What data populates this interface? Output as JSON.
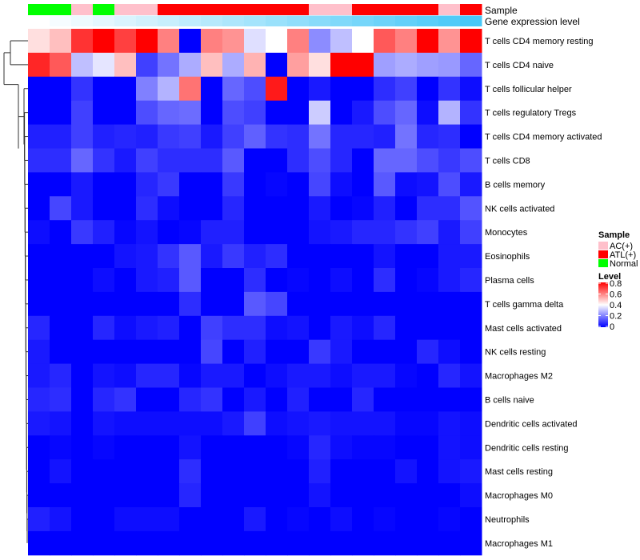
{
  "chart_data": {
    "type": "heatmap",
    "title": "",
    "annotations": {
      "sample_label": "Sample",
      "gene_label": "Gene expression level",
      "sample_groups": [
        "Normal",
        "Normal",
        "AC(+)",
        "Normal",
        "AC(+)",
        "AC(+)",
        "ATL(+)",
        "ATL(+)",
        "ATL(+)",
        "ATL(+)",
        "ATL(+)",
        "ATL(+)",
        "ATL(+)",
        "AC(+)",
        "AC(+)",
        "ATL(+)",
        "ATL(+)",
        "ATL(+)",
        "ATL(+)",
        "AC(+)",
        "ATL(+)"
      ],
      "gene_colors": {
        "low": "#ffffff",
        "high": "#48c8f8"
      }
    },
    "rows": [
      "T cells CD4 memory resting",
      "T cells CD4 naive",
      "T cells follicular helper",
      "T cells regulatory  Tregs",
      "T cells CD4 memory activated",
      "T cells CD8",
      "B cells memory",
      "NK cells activated",
      "Monocytes",
      "Eosinophils",
      "Plasma cells",
      "T cells gamma delta",
      "Mast cells activated",
      "NK cells resting",
      "Macrophages M2",
      "B cells naive",
      "Dendritic cells activated",
      "Dendritic cells resting",
      "Mast cells resting",
      "Macrophages M0",
      "Neutrophils",
      "Macrophages M1"
    ],
    "values": [
      [
        0.45,
        0.5,
        0.72,
        0.8,
        0.7,
        0.8,
        0.6,
        0,
        0.6,
        0.57,
        0.35,
        0.4,
        0.6,
        0.22,
        0.3,
        0.4,
        0.66,
        0.6,
        0.8,
        0.57,
        0.8
      ],
      [
        0.74,
        0.66,
        0.3,
        0.36,
        0.5,
        0.1,
        0.18,
        0.27,
        0.5,
        0.27,
        0.52,
        0,
        0.55,
        0.45,
        0.8,
        0.8,
        0.25,
        0.27,
        0.25,
        0.24,
        0.16
      ],
      [
        0,
        0,
        0.08,
        0,
        0,
        0.2,
        0.28,
        0.62,
        0,
        0.16,
        0.12,
        0.76,
        0,
        0.04,
        0,
        0,
        0.07,
        0.1,
        0,
        0.08,
        0.02
      ],
      [
        0,
        0,
        0.1,
        0,
        0,
        0.12,
        0.16,
        0.17,
        0,
        0.12,
        0.1,
        0,
        0,
        0.32,
        0,
        0.04,
        0.12,
        0.16,
        0.02,
        0.28,
        0.08
      ],
      [
        0.05,
        0.05,
        0.1,
        0.05,
        0.06,
        0.05,
        0.09,
        0.1,
        0.04,
        0.1,
        0.15,
        0.08,
        0.07,
        0.18,
        0.06,
        0.06,
        0.05,
        0.18,
        0.06,
        0.07,
        0
      ],
      [
        0.07,
        0.07,
        0.16,
        0.08,
        0.04,
        0.1,
        0.07,
        0.07,
        0.07,
        0.14,
        0,
        0,
        0.07,
        0.12,
        0.06,
        0,
        0.16,
        0.16,
        0.12,
        0.09,
        0.12
      ],
      [
        0,
        0,
        0.04,
        0,
        0,
        0.06,
        0.09,
        0,
        0,
        0.09,
        0,
        0.01,
        0,
        0.11,
        0.02,
        0,
        0.14,
        0.02,
        0.03,
        0.12,
        0.04
      ],
      [
        0,
        0.11,
        0.04,
        0,
        0,
        0.07,
        0.02,
        0,
        0,
        0.06,
        0,
        0,
        0,
        0.04,
        0,
        0.01,
        0.05,
        0,
        0.07,
        0.07,
        0.13
      ],
      [
        0.02,
        0,
        0.09,
        0.05,
        0.01,
        0.03,
        0,
        0.01,
        0.05,
        0.05,
        0,
        0,
        0,
        0.03,
        0.04,
        0.06,
        0.06,
        0.08,
        0.1,
        0.04,
        0.1
      ],
      [
        0,
        0,
        0,
        0,
        0.03,
        0.04,
        0.08,
        0.14,
        0.04,
        0.09,
        0.05,
        0.07,
        0,
        0,
        0,
        0,
        0.03,
        0,
        0,
        0.04,
        0.04
      ],
      [
        0,
        0,
        0,
        0.02,
        0,
        0.04,
        0.05,
        0.14,
        0,
        0,
        0.07,
        0,
        0.01,
        0,
        0.02,
        0,
        0.07,
        0,
        0.01,
        0.04,
        0.06
      ],
      [
        0,
        0,
        0,
        0,
        0,
        0,
        0,
        0.07,
        0,
        0,
        0.14,
        0.11,
        0,
        0,
        0,
        0,
        0,
        0,
        0,
        0,
        0
      ],
      [
        0.06,
        0,
        0,
        0.06,
        0.02,
        0.04,
        0.05,
        0,
        0.1,
        0.07,
        0.07,
        0.02,
        0.03,
        0,
        0.04,
        0.02,
        0.06,
        0,
        0,
        0,
        0
      ],
      [
        0.04,
        0,
        0,
        0,
        0,
        0,
        0,
        0,
        0.11,
        0,
        0.05,
        0,
        0,
        0.09,
        0.04,
        0,
        0,
        0,
        0.06,
        0.02,
        0
      ],
      [
        0.04,
        0.06,
        0,
        0.03,
        0.02,
        0.06,
        0.06,
        0.01,
        0.04,
        0.04,
        0,
        0.02,
        0.04,
        0.04,
        0.02,
        0.04,
        0.04,
        0.01,
        0,
        0.06,
        0.03
      ],
      [
        0.06,
        0.07,
        0,
        0.06,
        0.08,
        0,
        0,
        0.06,
        0.08,
        0,
        0.04,
        0,
        0.05,
        0,
        0,
        0.06,
        0,
        0,
        0,
        0,
        0
      ],
      [
        0.04,
        0.03,
        0,
        0.03,
        0.02,
        0.02,
        0.02,
        0.02,
        0.02,
        0.04,
        0.1,
        0.02,
        0.03,
        0.04,
        0.03,
        0.03,
        0.03,
        0.01,
        0.01,
        0.03,
        0.02
      ],
      [
        0,
        0.01,
        0,
        0.01,
        0,
        0,
        0,
        0.03,
        0,
        0,
        0,
        0,
        0.01,
        0.06,
        0.02,
        0.01,
        0.01,
        0,
        0,
        0.03,
        0.02
      ],
      [
        0,
        0.03,
        0,
        0,
        0,
        0,
        0,
        0.07,
        0,
        0,
        0,
        0,
        0,
        0.05,
        0,
        0,
        0,
        0.03,
        0,
        0.03,
        0.04
      ],
      [
        0,
        0,
        0,
        0,
        0,
        0,
        0,
        0.06,
        0,
        0,
        0,
        0,
        0,
        0.03,
        0,
        0,
        0,
        0,
        0,
        0,
        0.02
      ],
      [
        0.05,
        0.03,
        0,
        0,
        0.02,
        0.02,
        0.02,
        0,
        0,
        0,
        0.04,
        0,
        0.01,
        0,
        0.02,
        0,
        0.01,
        0,
        0,
        0.01,
        0
      ],
      [
        0,
        0,
        0,
        0,
        0,
        0,
        0,
        0,
        0,
        0,
        0,
        0,
        0,
        0,
        0,
        0,
        0,
        0,
        0,
        0,
        0
      ]
    ],
    "color_scale": {
      "low": "#0000ff",
      "mid": "#ffffff",
      "high": "#ff0000",
      "range": [
        0,
        0.8
      ]
    },
    "legend": {
      "sample_title": "Sample",
      "sample_entries": [
        {
          "label": "AC(+)",
          "color": "#ffc0cb"
        },
        {
          "label": "ATL(+)",
          "color": "#ff0000"
        },
        {
          "label": "Normal",
          "color": "#00ff00"
        }
      ],
      "level_title": "Level",
      "level_ticks": [
        "0.8",
        "0.6",
        "0.4",
        "0.2",
        "0"
      ],
      "placement": "right"
    }
  }
}
